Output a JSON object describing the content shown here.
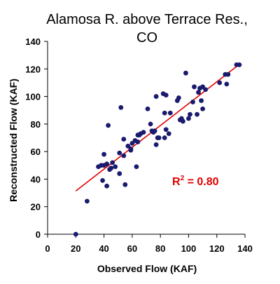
{
  "chart_data": {
    "type": "scatter",
    "title_line1": "Alamosa R. above Terrace Res.,",
    "title_line2": "CO",
    "xlabel": "Observed Flow (KAF)",
    "ylabel": "Reconstructed Flow (KAF)",
    "xlim": [
      0,
      140
    ],
    "ylim": [
      0,
      140
    ],
    "x_ticks": [
      "0",
      "20",
      "40",
      "60",
      "80",
      "100",
      "120",
      "140"
    ],
    "y_ticks": [
      "0",
      "20",
      "40",
      "60",
      "80",
      "100",
      "120",
      "140"
    ],
    "grid": false,
    "point_color": "#1a1a6e",
    "line_color": "#e00000",
    "annotation": {
      "r2_base": "R",
      "r2_sup": "2",
      "r2_value": " = 0.80",
      "color": "#e00000"
    },
    "trendline": {
      "x": [
        20,
        136
      ],
      "y": [
        31.4,
        123.3
      ]
    },
    "points": [
      [
        20,
        0
      ],
      [
        28,
        24
      ],
      [
        36,
        49
      ],
      [
        38,
        50
      ],
      [
        39,
        39
      ],
      [
        40,
        58
      ],
      [
        40,
        50
      ],
      [
        42,
        35
      ],
      [
        42,
        51
      ],
      [
        43,
        79
      ],
      [
        44,
        47
      ],
      [
        45,
        48
      ],
      [
        46,
        52
      ],
      [
        48,
        49
      ],
      [
        51,
        59
      ],
      [
        51,
        44
      ],
      [
        52,
        92
      ],
      [
        54,
        69
      ],
      [
        54,
        57
      ],
      [
        55,
        36
      ],
      [
        57,
        64
      ],
      [
        59,
        62
      ],
      [
        59,
        61
      ],
      [
        60,
        66
      ],
      [
        62,
        68
      ],
      [
        63,
        49
      ],
      [
        64,
        72
      ],
      [
        64,
        67
      ],
      [
        65,
        72
      ],
      [
        66,
        73
      ],
      [
        68,
        74
      ],
      [
        71,
        91
      ],
      [
        73,
        80
      ],
      [
        74,
        75
      ],
      [
        75,
        74
      ],
      [
        76,
        75
      ],
      [
        77,
        65
      ],
      [
        77,
        100
      ],
      [
        78,
        70
      ],
      [
        79,
        70
      ],
      [
        82,
        102
      ],
      [
        83,
        88
      ],
      [
        83,
        70
      ],
      [
        84,
        101
      ],
      [
        84,
        76
      ],
      [
        86,
        73
      ],
      [
        87,
        88
      ],
      [
        92,
        97
      ],
      [
        93,
        99
      ],
      [
        94,
        83
      ],
      [
        95,
        84
      ],
      [
        96,
        82
      ],
      [
        98,
        117
      ],
      [
        100,
        84
      ],
      [
        101,
        87
      ],
      [
        103,
        96
      ],
      [
        104,
        107
      ],
      [
        106,
        87
      ],
      [
        107,
        103
      ],
      [
        108,
        106
      ],
      [
        109,
        97
      ],
      [
        110,
        107
      ],
      [
        110,
        91
      ],
      [
        112,
        105
      ],
      [
        122,
        110
      ],
      [
        126,
        116
      ],
      [
        127,
        109
      ],
      [
        128,
        116
      ],
      [
        134,
        123
      ],
      [
        136,
        123
      ]
    ]
  }
}
